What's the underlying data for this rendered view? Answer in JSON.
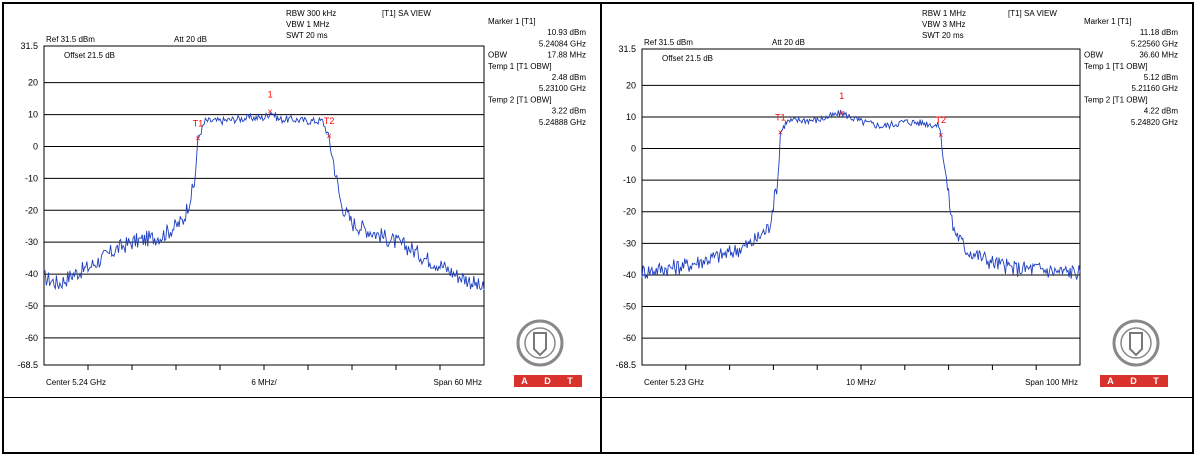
{
  "colors": {
    "trace": "#1f3fbf",
    "marker": "#ff0000",
    "grid": "#000000",
    "logo_red": "#d9312b"
  },
  "chart_data": [
    {
      "type": "line",
      "title": "",
      "ylim": [
        -68.5,
        31.5
      ],
      "y_ticks": [
        "31.5",
        "20",
        "10",
        "0",
        "-10",
        "-20",
        "-30",
        "-40",
        "-50",
        "-60",
        "-68.5"
      ],
      "x_range_ghz": [
        5.21,
        5.27
      ],
      "header": {
        "ref": "Ref 31.5 dBm",
        "att": "Att  20 dB",
        "rbw": "RBW 300 kHz",
        "vbw": "VBW 1 MHz",
        "swt": "SWT 20 ms",
        "view": "[T1] SA VIEW",
        "offset": "Offset 21.5 dB"
      },
      "footer": {
        "center": "Center 5.24 GHz",
        "div": "6 MHz/",
        "span": "Span 60 MHz"
      },
      "readout": [
        {
          "label": "Marker 1 [T1]",
          "value": ""
        },
        {
          "label": "",
          "value": "10.93 dBm"
        },
        {
          "label": "",
          "value": "5.24084 GHz"
        },
        {
          "label": "OBW",
          "value": "17.88 MHz"
        },
        {
          "label": "Temp 1 [T1 OBW]",
          "value": ""
        },
        {
          "label": "",
          "value": "2.48 dBm"
        },
        {
          "label": "",
          "value": "5.23100 GHz"
        },
        {
          "label": "Temp 2 [T1 OBW]",
          "value": ""
        },
        {
          "label": "",
          "value": "3.22 dBm"
        },
        {
          "label": "",
          "value": "5.24888 GHz"
        }
      ],
      "markers": [
        {
          "label": "1",
          "x": 5.24084,
          "y": 10.93
        },
        {
          "label": "T1",
          "x": 5.231,
          "y": 2.48
        },
        {
          "label": "T2",
          "x": 5.24888,
          "y": 3.22
        }
      ],
      "series": [
        {
          "x": [
            5.21,
            5.212,
            5.214,
            5.216,
            5.218,
            5.22,
            5.222,
            5.224,
            5.226,
            5.228,
            5.229,
            5.2305,
            5.231,
            5.232,
            5.234,
            5.236,
            5.238,
            5.24,
            5.241,
            5.242,
            5.244,
            5.246,
            5.248,
            5.2488,
            5.2495,
            5.2505,
            5.252,
            5.254,
            5.256,
            5.258,
            5.26,
            5.262,
            5.264,
            5.266,
            5.268,
            5.27
          ],
          "y": [
            -41,
            -43,
            -40,
            -38,
            -35,
            -32,
            -30,
            -29,
            -28,
            -25,
            -23,
            -12,
            2.5,
            8,
            8,
            8.5,
            9,
            9,
            10.9,
            8.5,
            8.5,
            8,
            8,
            3.2,
            -5,
            -18,
            -24,
            -26,
            -28,
            -30,
            -32,
            -35,
            -37,
            -40,
            -42,
            -45
          ]
        }
      ]
    },
    {
      "type": "line",
      "title": "",
      "ylim": [
        -68.5,
        31.5
      ],
      "y_ticks": [
        "31.5",
        "20",
        "10",
        "0",
        "-10",
        "-20",
        "-30",
        "-40",
        "-50",
        "-60",
        "-68.5"
      ],
      "x_range_ghz": [
        5.18,
        5.28
      ],
      "header": {
        "ref": "Ref 31.5 dBm",
        "att": "Att  20 dB",
        "rbw": "RBW 1 MHz",
        "vbw": "VBW 3 MHz",
        "swt": "SWT 20 ms",
        "view": "[T1] SA VIEW",
        "offset": "Offset 21.5 dB"
      },
      "footer": {
        "center": "Center 5.23 GHz",
        "div": "10 MHz/",
        "span": "Span 100 MHz"
      },
      "readout": [
        {
          "label": "Marker 1 [T1]",
          "value": ""
        },
        {
          "label": "",
          "value": "11.18 dBm"
        },
        {
          "label": "",
          "value": "5.22560 GHz"
        },
        {
          "label": "OBW",
          "value": "36.60 MHz"
        },
        {
          "label": "Temp 1 [T1 OBW]",
          "value": ""
        },
        {
          "label": "",
          "value": "5.12 dBm"
        },
        {
          "label": "",
          "value": "5.21160 GHz"
        },
        {
          "label": "Temp 2 [T1 OBW]",
          "value": ""
        },
        {
          "label": "",
          "value": "4.22 dBm"
        },
        {
          "label": "",
          "value": "5.24820 GHz"
        }
      ],
      "markers": [
        {
          "label": "1",
          "x": 5.2256,
          "y": 11.18
        },
        {
          "label": "T1",
          "x": 5.2116,
          "y": 5.12
        },
        {
          "label": "T2",
          "x": 5.2482,
          "y": 4.22
        }
      ],
      "series": [
        {
          "x": [
            5.18,
            5.185,
            5.19,
            5.195,
            5.2,
            5.205,
            5.209,
            5.211,
            5.2116,
            5.213,
            5.216,
            5.22,
            5.2256,
            5.23,
            5.235,
            5.24,
            5.245,
            5.248,
            5.2482,
            5.2495,
            5.251,
            5.254,
            5.26,
            5.265,
            5.27,
            5.275,
            5.28
          ],
          "y": [
            -39,
            -38,
            -37,
            -35,
            -33,
            -30,
            -25,
            -10,
            5.1,
            8.5,
            9,
            9,
            11.2,
            8.5,
            7,
            8.5,
            8,
            7,
            4.2,
            -10,
            -25,
            -32,
            -36,
            -38,
            -38,
            -39,
            -39
          ]
        }
      ]
    }
  ]
}
